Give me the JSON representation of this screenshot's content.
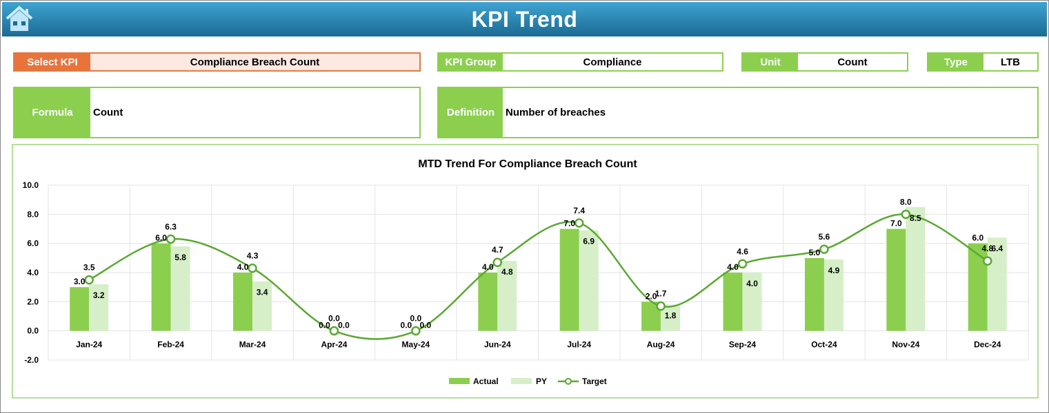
{
  "header": {
    "title": "KPI Trend",
    "home_icon": "home-icon"
  },
  "fields": {
    "select_kpi": {
      "label": "Select KPI",
      "value": "Compliance Breach Count"
    },
    "kpi_group": {
      "label": "KPI Group",
      "value": "Compliance"
    },
    "unit": {
      "label": "Unit",
      "value": "Count"
    },
    "type": {
      "label": "Type",
      "value": "LTB"
    },
    "formula": {
      "label": "Formula",
      "value": "Count"
    },
    "definition": {
      "label": "Definition",
      "value": "Number of breaches"
    }
  },
  "colors": {
    "actual": "#8ccf4f",
    "py": "#d6efc8",
    "target": "#5aa832"
  },
  "chart_data": {
    "type": "bar",
    "title": "MTD Trend For Compliance Breach Count",
    "categories": [
      "Jan-24",
      "Feb-24",
      "Mar-24",
      "Apr-24",
      "May-24",
      "Jun-24",
      "Jul-24",
      "Aug-24",
      "Sep-24",
      "Oct-24",
      "Nov-24",
      "Dec-24"
    ],
    "ylim": [
      -2,
      10
    ],
    "yticks": [
      "-2.0",
      "0.0",
      "2.0",
      "4.0",
      "6.0",
      "8.0",
      "10.0"
    ],
    "grid": true,
    "legend_position": "bottom",
    "series": [
      {
        "name": "Actual",
        "type": "bar",
        "values": [
          3,
          6,
          4,
          0,
          0,
          4,
          7,
          2,
          4,
          5,
          7,
          6
        ]
      },
      {
        "name": "PY",
        "type": "bar",
        "values": [
          3.2,
          5.8,
          3.4,
          0,
          0,
          4.8,
          6.9,
          1.8,
          4.0,
          4.9,
          8.5,
          6.4
        ]
      },
      {
        "name": "Target",
        "type": "line",
        "values": [
          3.5,
          6.3,
          4.3,
          0,
          0,
          4.7,
          7.4,
          1.7,
          4.6,
          5.6,
          8.0,
          4.8
        ]
      }
    ]
  }
}
